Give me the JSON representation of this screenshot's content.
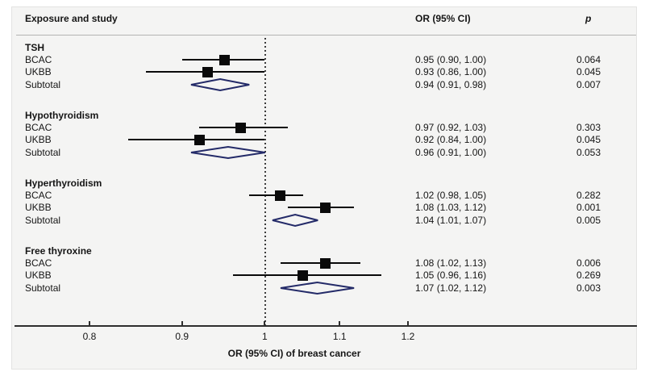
{
  "header": {
    "exposure": "Exposure and study",
    "or": "OR (95% CI)",
    "p": "p"
  },
  "axis": {
    "scale": "log",
    "ticks": [
      "0.8",
      "0.9",
      "1",
      "1.1",
      "1.2"
    ],
    "tick_values": [
      0.8,
      0.9,
      1.0,
      1.1,
      1.2
    ],
    "reference_line": 1.0,
    "xlabel": "OR (95% CI) of breast cancer"
  },
  "colors": {
    "panel_bg": "#f4f4f3",
    "marker": "#0a0a0a",
    "ci_line": "#0a0a0a",
    "diamond_stroke": "#232a68",
    "reference_line": "#3c3c3c",
    "axis": "#2e2e2e",
    "separator": "#b3b3b2",
    "text": "#151515"
  },
  "chart_data": {
    "type": "forest",
    "xlabel": "OR (95% CI) of breast cancer",
    "x_scale": "log",
    "x_ticks": [
      0.8,
      0.9,
      1.0,
      1.1,
      1.2
    ],
    "reference_value": 1.0,
    "groups": [
      {
        "label": "TSH",
        "rows": [
          {
            "study": "BCAC",
            "kind": "study",
            "or": 0.95,
            "lo": 0.9,
            "hi": 1.0,
            "or_text": "0.95 (0.90, 1.00)",
            "p": "0.064"
          },
          {
            "study": "UKBB",
            "kind": "study",
            "or": 0.93,
            "lo": 0.86,
            "hi": 1.0,
            "or_text": "0.93 (0.86, 1.00)",
            "p": "0.045"
          },
          {
            "study": "Subtotal",
            "kind": "subtotal",
            "or": 0.94,
            "lo": 0.91,
            "hi": 0.98,
            "or_text": "0.94 (0.91, 0.98)",
            "p": "0.007"
          }
        ]
      },
      {
        "label": "Hypothyroidism",
        "rows": [
          {
            "study": "BCAC",
            "kind": "study",
            "or": 0.97,
            "lo": 0.92,
            "hi": 1.03,
            "or_text": "0.97 (0.92, 1.03)",
            "p": "0.303"
          },
          {
            "study": "UKBB",
            "kind": "study",
            "or": 0.92,
            "lo": 0.84,
            "hi": 1.0,
            "or_text": "0.92 (0.84, 1.00)",
            "p": "0.045"
          },
          {
            "study": "Subtotal",
            "kind": "subtotal",
            "or": 0.96,
            "lo": 0.91,
            "hi": 1.0,
            "or_text": "0.96 (0.91, 1.00)",
            "p": "0.053"
          }
        ]
      },
      {
        "label": "Hyperthyroidism",
        "rows": [
          {
            "study": "BCAC",
            "kind": "study",
            "or": 1.02,
            "lo": 0.98,
            "hi": 1.05,
            "or_text": "1.02 (0.98, 1.05)",
            "p": "0.282"
          },
          {
            "study": "UKBB",
            "kind": "study",
            "or": 1.08,
            "lo": 1.03,
            "hi": 1.12,
            "or_text": "1.08 (1.03, 1.12)",
            "p": "0.001"
          },
          {
            "study": "Subtotal",
            "kind": "subtotal",
            "or": 1.04,
            "lo": 1.01,
            "hi": 1.07,
            "or_text": "1.04 (1.01, 1.07)",
            "p": "0.005"
          }
        ]
      },
      {
        "label": "Free thyroxine",
        "rows": [
          {
            "study": "BCAC",
            "kind": "study",
            "or": 1.08,
            "lo": 1.02,
            "hi": 1.13,
            "or_text": "1.08 (1.02, 1.13)",
            "p": "0.006"
          },
          {
            "study": "UKBB",
            "kind": "study",
            "or": 1.05,
            "lo": 0.96,
            "hi": 1.16,
            "or_text": "1.05 (0.96, 1.16)",
            "p": "0.269"
          },
          {
            "study": "Subtotal",
            "kind": "subtotal",
            "or": 1.07,
            "lo": 1.02,
            "hi": 1.12,
            "or_text": "1.07 (1.02, 1.12)",
            "p": "0.003"
          }
        ]
      }
    ]
  }
}
